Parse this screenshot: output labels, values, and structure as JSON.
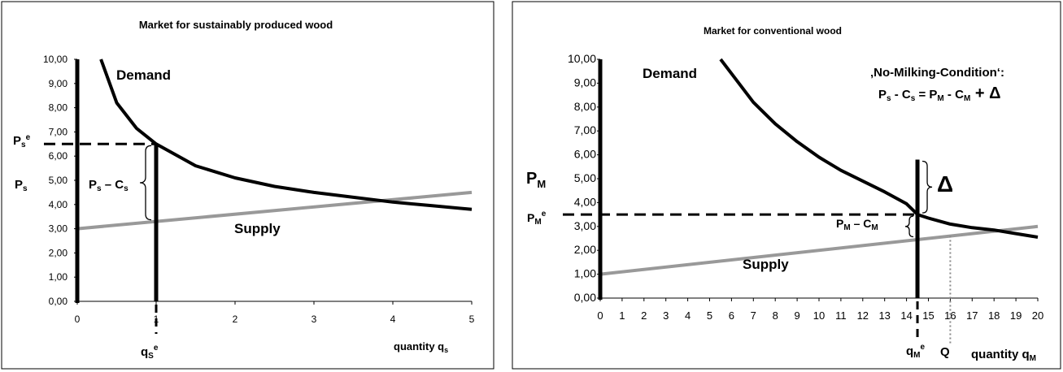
{
  "charts": [
    {
      "id": "left",
      "title": "Market for sustainably produced wood",
      "y_ticks": [
        "0,00",
        "1,00",
        "2,00",
        "3,00",
        "4,00",
        "5,00",
        "6,00",
        "7,00",
        "8,00",
        "9,00",
        "10,00"
      ],
      "x_ticks": [
        "0",
        "1",
        "2",
        "3",
        "4",
        "5"
      ],
      "labels": {
        "demand": "Demand",
        "supply": "Supply",
        "price_axis": "P",
        "price_axis_sub": "s",
        "eq_price": "P",
        "eq_price_sub": "s",
        "eq_price_sup": "e",
        "margin": "P",
        "margin_sub": "s",
        "margin_mid": " – C",
        "margin_sub2": "s",
        "eq_qty": "q",
        "eq_qty_sub": "S",
        "eq_qty_sup": "e",
        "xlabel": "quantity q",
        "xlabel_sub": "s"
      }
    },
    {
      "id": "right",
      "title": "Market for conventional wood",
      "y_ticks": [
        "0,00",
        "1,00",
        "2,00",
        "3,00",
        "4,00",
        "5,00",
        "6,00",
        "7,00",
        "8,00",
        "9,00",
        "10,00"
      ],
      "x_ticks": [
        "0",
        "1",
        "2",
        "3",
        "4",
        "5",
        "6",
        "7",
        "8",
        "9",
        "10",
        "11",
        "12",
        "13",
        "14",
        "15",
        "16",
        "17",
        "18",
        "19",
        "20"
      ],
      "labels": {
        "demand": "Demand",
        "supply": "Supply",
        "price_axis": "P",
        "price_axis_sub": "M",
        "eq_price": "P",
        "eq_price_sub": "M",
        "eq_price_sup": "e",
        "margin": "P",
        "margin_sub": "M",
        "margin_mid": " – C",
        "margin_sub2": "M",
        "delta": "Δ",
        "condition_title": "‚No-Milking-Condition‘:",
        "cond_a": "P",
        "cond_a_sub": "s",
        "cond_b": " - C",
        "cond_b_sub": "s",
        "cond_c": " = P",
        "cond_c_sub": "M",
        "cond_d": " - C",
        "cond_d_sub": "M",
        "cond_e": "  +  Δ",
        "eq_qty": "q",
        "eq_qty_sub": "M",
        "eq_qty_sup": "e",
        "q_label": "Q",
        "xlabel": "quantity q",
        "xlabel_sub": "M"
      }
    }
  ],
  "chart_data": [
    {
      "type": "line",
      "title": "Market for sustainably produced wood",
      "xlabel": "quantity qs",
      "ylabel": "Ps",
      "xlim": [
        0,
        5
      ],
      "ylim": [
        0,
        10
      ],
      "grid": false,
      "series": [
        {
          "name": "Demand",
          "color": "#000000",
          "x": [
            0.3,
            0.5,
            0.75,
            1.0,
            1.5,
            2.0,
            2.5,
            3.0,
            3.5,
            4.0,
            4.5,
            5.0
          ],
          "y": [
            10.0,
            8.2,
            7.15,
            6.5,
            5.6,
            5.1,
            4.75,
            4.5,
            4.3,
            4.1,
            3.95,
            3.8
          ]
        },
        {
          "name": "Supply",
          "color": "#999999",
          "x": [
            0,
            5
          ],
          "y": [
            3.0,
            4.5
          ]
        }
      ],
      "equilibrium": {
        "q": 1.0,
        "p": 6.5,
        "supply_at_q": 3.3
      }
    },
    {
      "type": "line",
      "title": "Market for conventional wood",
      "xlabel": "quantity qM",
      "ylabel": "PM",
      "xlim": [
        0,
        20
      ],
      "ylim": [
        0,
        10
      ],
      "grid": false,
      "series": [
        {
          "name": "Demand",
          "color": "#000000",
          "x": [
            5.5,
            6,
            7,
            8,
            9,
            10,
            11,
            12,
            13,
            14,
            14.5,
            15,
            16,
            17,
            18,
            19,
            20
          ],
          "y": [
            10.0,
            9.4,
            8.2,
            7.3,
            6.55,
            5.9,
            5.35,
            4.9,
            4.45,
            3.95,
            3.5,
            3.35,
            3.1,
            2.95,
            2.85,
            2.7,
            2.55
          ]
        },
        {
          "name": "Supply",
          "color": "#999999",
          "x": [
            0,
            20
          ],
          "y": [
            1.0,
            3.0
          ]
        }
      ],
      "equilibrium": {
        "q": 14.5,
        "p": 3.5,
        "supply_at_q": 2.5,
        "delta_top": 5.8
      },
      "reference_q": 16
    }
  ]
}
